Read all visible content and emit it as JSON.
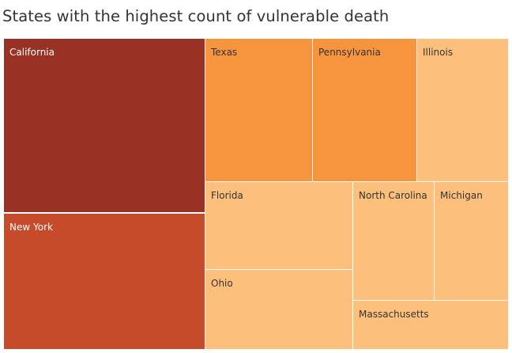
{
  "chart_data": {
    "type": "treemap",
    "title": "States with the highest count of vulnerable death",
    "items": [
      {
        "name": "California",
        "color": "#993224",
        "label_color": "#ffffff"
      },
      {
        "name": "New York",
        "color": "#c54b2b",
        "label_color": "#ffffff"
      },
      {
        "name": "Texas",
        "color": "#f7953f",
        "label_color": "#333333"
      },
      {
        "name": "Pennsylvania",
        "color": "#f7953f",
        "label_color": "#333333"
      },
      {
        "name": "Illinois",
        "color": "#fdc07c",
        "label_color": "#333333"
      },
      {
        "name": "Florida",
        "color": "#fdc07c",
        "label_color": "#333333"
      },
      {
        "name": "Ohio",
        "color": "#fdc07c",
        "label_color": "#333333"
      },
      {
        "name": "North Carolina",
        "color": "#fdc07c",
        "label_color": "#333333"
      },
      {
        "name": "Michigan",
        "color": "#fdc07c",
        "label_color": "#333333"
      },
      {
        "name": "Massachusetts",
        "color": "#fdc07c",
        "label_color": "#333333"
      }
    ]
  }
}
